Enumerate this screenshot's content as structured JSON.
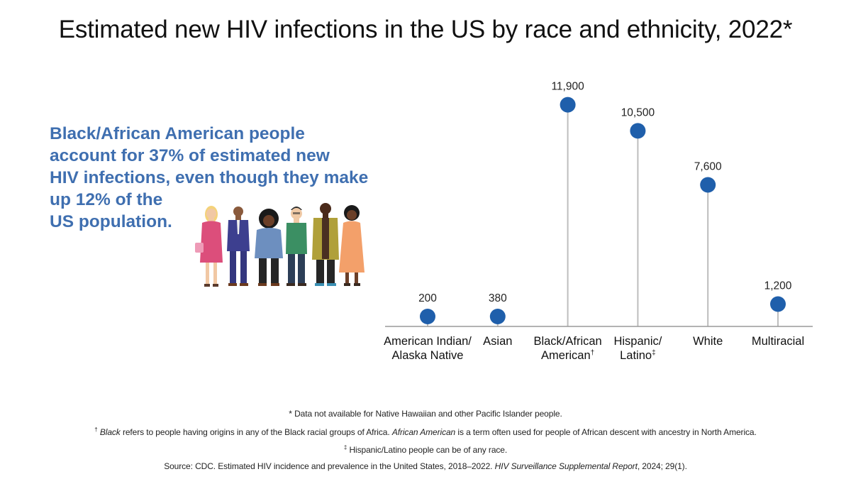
{
  "colors": {
    "accent": "#3f6fb0",
    "marker": "#1f5fab",
    "stem": "#bdbdbd",
    "axis": "#9a9a9a"
  },
  "callout": {
    "lines": [
      "Black/African American people",
      "account for 37% of estimated new",
      "HIV infections, even though they make",
      "up 12% of the",
      "US population."
    ],
    "illustration_icon": "diverse-people-illustration"
  },
  "chart_data": {
    "type": "lollipop",
    "title": "Estimated new HIV infections in the US by race and ethnicity, 2022*",
    "categories": [
      {
        "line1": "American Indian/",
        "line2": "Alaska Native",
        "mark": ""
      },
      {
        "line1": "Asian",
        "line2": "",
        "mark": ""
      },
      {
        "line1": "Black/African",
        "line2": "American",
        "mark": "†"
      },
      {
        "line1": "Hispanic/",
        "line2": "Latino",
        "mark": "‡"
      },
      {
        "line1": "White",
        "line2": "",
        "mark": ""
      },
      {
        "line1": "Multiracial",
        "line2": "",
        "mark": ""
      }
    ],
    "values": [
      200,
      380,
      11900,
      10500,
      7600,
      1200
    ],
    "value_labels": [
      "200",
      "380",
      "11,900",
      "10,500",
      "7,600",
      "1,200"
    ],
    "ylim": [
      0,
      12000
    ],
    "grid": false,
    "xlabel": "",
    "ylabel": ""
  },
  "notes": {
    "note1": "Data not available for Native Hawaiian and other Pacific Islander people.",
    "note1_mark": "*",
    "note2_mark": "†",
    "note2_term1": "Black",
    "note2_text1": " refers to people having origins in any of the Black racial groups of Africa. ",
    "note2_term2": "African American",
    "note2_text2": " is a term often used for people of African descent with ancestry in North America.",
    "note3_mark": "‡",
    "note3": "Hispanic/Latino people can be of any race.",
    "source_pre": "Source: CDC. Estimated HIV incidence and prevalence in the United States, 2018–2022. ",
    "source_journal": "HIV Surveillance Supplemental Report",
    "source_post": ", 2024; 29(1)."
  }
}
